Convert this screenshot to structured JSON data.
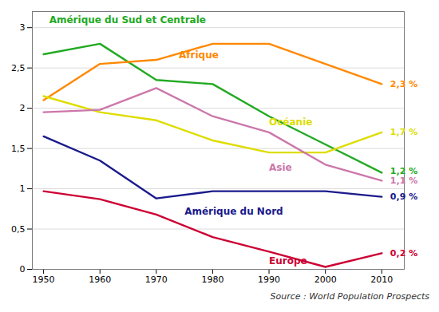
{
  "chart_data": {
    "type": "line",
    "caption": "Source : World Population Prospects",
    "x": [
      1950,
      1960,
      1970,
      1980,
      1990,
      2000,
      2010
    ],
    "series": [
      {
        "name": "Amérique du Sud et Centrale",
        "color": "#22aa22",
        "values": [
          2.67,
          2.8,
          2.35,
          2.3,
          1.9,
          1.55,
          1.2
        ]
      },
      {
        "name": "Afrique",
        "color": "#ff8800",
        "values": [
          2.1,
          2.55,
          2.6,
          2.8,
          2.8,
          2.55,
          2.3
        ]
      },
      {
        "name": "Océanie",
        "color": "#dddd00",
        "values": [
          2.15,
          1.95,
          1.85,
          1.6,
          1.45,
          1.45,
          1.7
        ]
      },
      {
        "name": "Asie",
        "color": "#cc77aa",
        "values": [
          1.95,
          1.98,
          2.25,
          1.9,
          1.7,
          1.3,
          1.1
        ]
      },
      {
        "name": "Amérique du Nord",
        "color": "#1a1a8c",
        "values": [
          1.65,
          1.35,
          0.88,
          0.97,
          0.97,
          0.97,
          0.9
        ]
      },
      {
        "name": "Europe",
        "color": "#cc0033",
        "values": [
          0.97,
          0.87,
          0.68,
          0.4,
          0.22,
          0.03,
          0.2
        ]
      }
    ],
    "annotations": [
      {
        "text": "Amérique du Sud et Centrale",
        "x": 1951,
        "y": 3.06,
        "color": "#22aa22"
      },
      {
        "text": "Afrique",
        "x": 1974,
        "y": 2.62,
        "color": "#ff8800"
      },
      {
        "text": "Océanie",
        "x": 1990,
        "y": 1.79,
        "color": "#dddd00"
      },
      {
        "text": "Asie",
        "x": 1990,
        "y": 1.22,
        "color": "#cc77aa"
      },
      {
        "text": "Amérique du Nord",
        "x": 1975,
        "y": 0.68,
        "color": "#1a1a8c"
      },
      {
        "text": "Europe",
        "x": 1990,
        "y": 0.06,
        "color": "#cc0033"
      },
      {
        "text": "1,2 %",
        "x": 2011.5,
        "y": 1.22,
        "color": "#22aa22"
      },
      {
        "text": "2,3 %",
        "x": 2011.5,
        "y": 2.3,
        "color": "#ff8800"
      },
      {
        "text": "1,7 %",
        "x": 2011.5,
        "y": 1.7,
        "color": "#dddd00"
      },
      {
        "text": "1,1 %",
        "x": 2011.5,
        "y": 1.1,
        "color": "#cc77aa"
      },
      {
        "text": "0,9 %",
        "x": 2011.5,
        "y": 0.9,
        "color": "#1a1a8c"
      },
      {
        "text": "0,2 %",
        "x": 2011.5,
        "y": 0.2,
        "color": "#cc0033"
      }
    ],
    "xlim": [
      1948,
      2014
    ],
    "xticks": [
      1950,
      1960,
      1970,
      1980,
      1990,
      2000,
      2010
    ],
    "ylim": [
      0,
      3.2
    ],
    "yticks": [
      0,
      {
        "value": 0.5,
        "label": "0,5"
      },
      1,
      {
        "value": 1.5,
        "label": "1,5"
      },
      2,
      {
        "value": 2.5,
        "label": "2,5"
      },
      3
    ],
    "grid": true
  }
}
